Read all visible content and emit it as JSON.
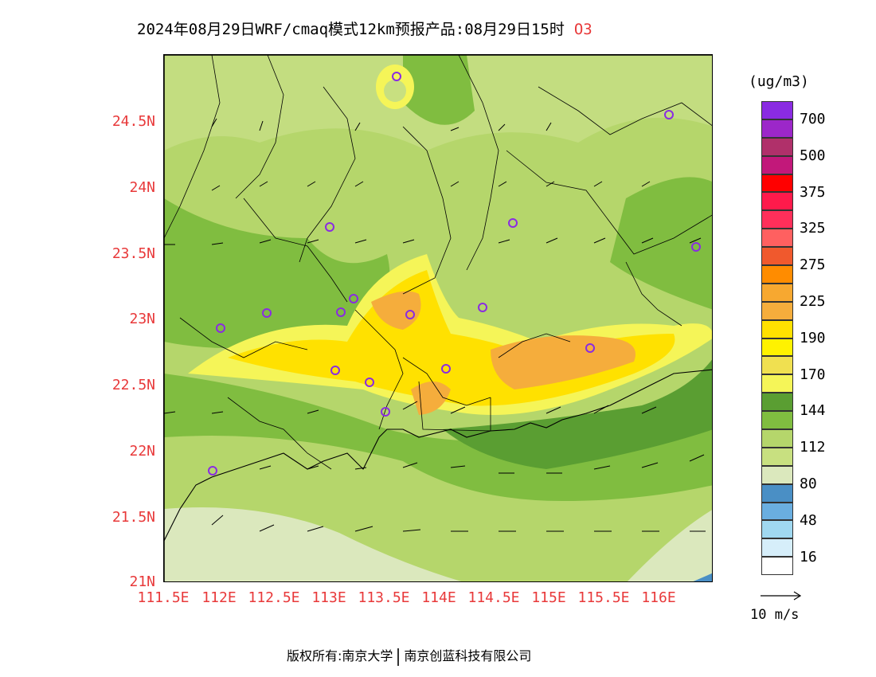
{
  "title": "2024年08月29日WRF/cmaq模式12km预报产品:08月29日15时",
  "species": "O3",
  "colorbar": {
    "unit": "(ug/m3)",
    "colors": [
      "#8a2be2",
      "#9c27c9",
      "#b0306a",
      "#c2187a",
      "#ff0000",
      "#ff1a4b",
      "#ff2f5a",
      "#ff6060",
      "#f0592d",
      "#ff8c00",
      "#f7a830",
      "#f5ad3c",
      "#ffe100",
      "#fff200",
      "#f0e050",
      "#f5f558",
      "#5a9e32",
      "#80bd40",
      "#b5d66b",
      "#c8e080",
      "#dbe8bd",
      "#4a8fc5",
      "#6aaee0",
      "#a0d8f0",
      "#d6eefa",
      "#ffffff"
    ],
    "labels": [
      "700",
      "500",
      "375",
      "325",
      "275",
      "225",
      "190",
      "170",
      "144",
      "112",
      "80",
      "48",
      "16"
    ]
  },
  "axes": {
    "lat_labels": [
      "24.5N",
      "24N",
      "23.5N",
      "23N",
      "22.5N",
      "22N",
      "21.5N",
      "21N"
    ],
    "lon_labels": [
      "111.5E",
      "112E",
      "112.5E",
      "113E",
      "113.5E",
      "114E",
      "114.5E",
      "115E",
      "115.5E",
      "116E"
    ]
  },
  "wind_reference": {
    "label": "10 m/s"
  },
  "footer": {
    "left": "版权所有:南京大学",
    "right": "南京创蓝科技有限公司"
  }
}
